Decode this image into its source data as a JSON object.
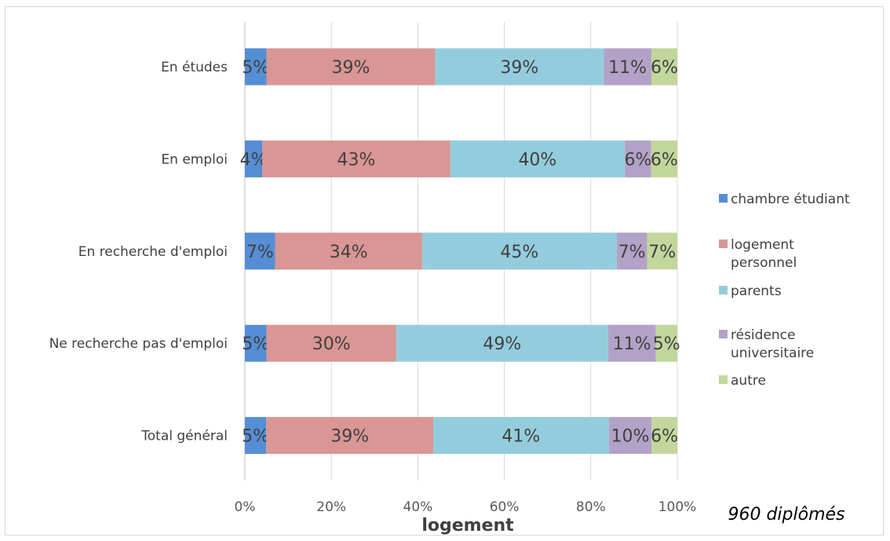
{
  "chart_data": {
    "type": "bar",
    "orientation": "horizontal",
    "stacked": "percent",
    "title": "",
    "xlabel": "logement",
    "ylabel": "",
    "categories": [
      "En études",
      "En emploi",
      "En recherche d'emploi",
      "Ne recherche pas d'emploi",
      "Total général"
    ],
    "series": [
      {
        "name": "chambre étudiant",
        "color": "#558ed5",
        "values": [
          5,
          4,
          7,
          5,
          5
        ]
      },
      {
        "name": "logement personnel",
        "color": "#d99694",
        "values": [
          39,
          43,
          34,
          30,
          39
        ]
      },
      {
        "name": "parents",
        "color": "#93cddd",
        "values": [
          39,
          40,
          45,
          49,
          41
        ]
      },
      {
        "name": "résidence universitaire",
        "color": "#b3a2c7",
        "values": [
          11,
          6,
          7,
          11,
          10
        ]
      },
      {
        "name": "autre",
        "color": "#c3d69b",
        "values": [
          6,
          6,
          7,
          5,
          6
        ]
      }
    ],
    "xticks": [
      "0%",
      "20%",
      "40%",
      "60%",
      "80%",
      "100%"
    ],
    "xlim": [
      0,
      100
    ],
    "grid": true,
    "legend_position": "right"
  },
  "annotation": "960 diplômés",
  "legend_labels": [
    [
      "chambre étudiant"
    ],
    [
      "logement",
      "personnel"
    ],
    [
      "parents"
    ],
    [
      "résidence",
      "universitaire"
    ],
    [
      "autre"
    ]
  ]
}
